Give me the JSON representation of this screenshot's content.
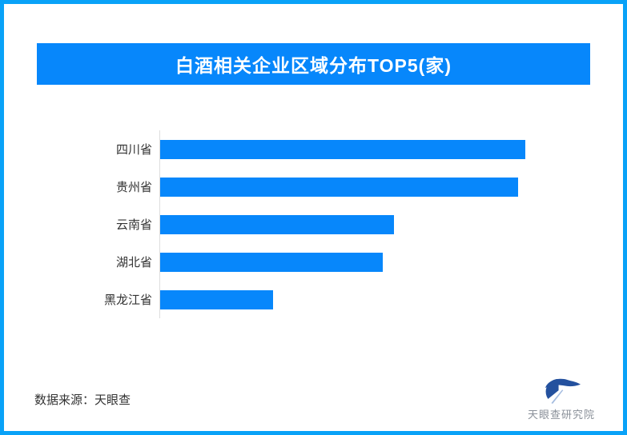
{
  "frame": {
    "background": "#FFFFFF",
    "border_color": "#09A2F8"
  },
  "header": {
    "title": "白酒相关企业区域分布TOP5(家)",
    "background": "#0787FB",
    "text_color": "#FFFFFF"
  },
  "chart_data": {
    "type": "bar",
    "orientation": "horizontal",
    "title": "白酒相关企业区域分布TOP5(家)",
    "categories": [
      "四川省",
      "贵州省",
      "云南省",
      "湖北省",
      "黑龙江省"
    ],
    "values_pct_of_max": [
      100,
      98,
      64,
      61,
      31
    ],
    "value_labels_shown": false,
    "bar_color": "#0787FB",
    "axis_line_color": "#DDDDDD",
    "xlabel": "",
    "ylabel": "",
    "legend": "none",
    "grid": false,
    "note": "Bars carry no numeric labels in the source image; values are estimated from bar lengths as percent of the longest bar (四川省 = 100)."
  },
  "footer": {
    "source_text": "数据来源：天眼查",
    "logo": {
      "name": "天眼查研究院",
      "mark_color": "#24519E",
      "mark_accent_color": "#A4BCE0",
      "text_color": "#8A9099"
    }
  }
}
